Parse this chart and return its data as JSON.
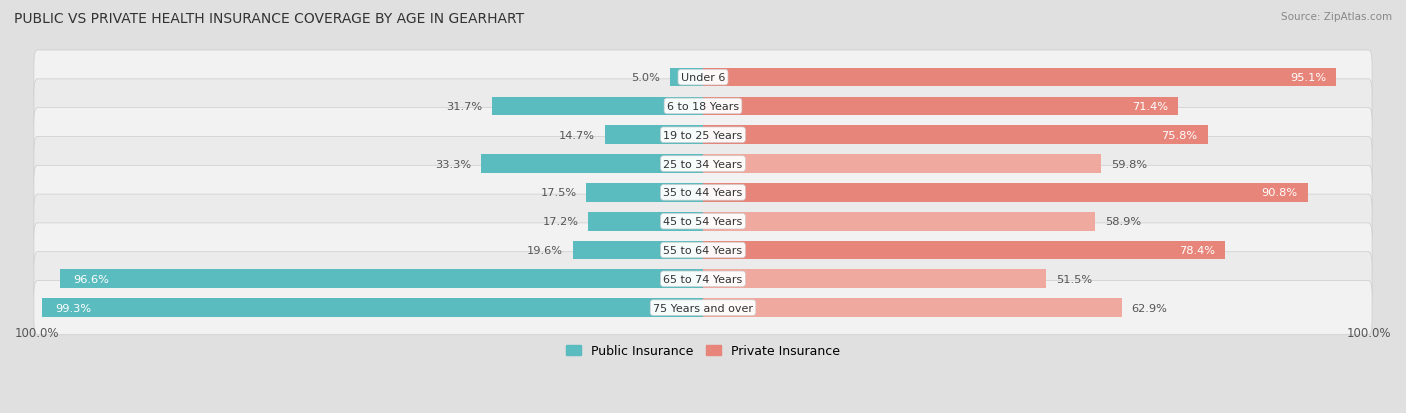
{
  "title": "PUBLIC VS PRIVATE HEALTH INSURANCE COVERAGE BY AGE IN GEARHART",
  "source": "Source: ZipAtlas.com",
  "categories": [
    "Under 6",
    "6 to 18 Years",
    "19 to 25 Years",
    "25 to 34 Years",
    "35 to 44 Years",
    "45 to 54 Years",
    "55 to 64 Years",
    "65 to 74 Years",
    "75 Years and over"
  ],
  "public_values": [
    5.0,
    31.7,
    14.7,
    33.3,
    17.5,
    17.2,
    19.6,
    96.6,
    99.3
  ],
  "private_values": [
    95.1,
    71.4,
    75.8,
    59.8,
    90.8,
    58.9,
    78.4,
    51.5,
    62.9
  ],
  "public_color": "#5bbcbf",
  "private_color": "#e8857a",
  "private_color_light": "#f0a99f",
  "row_bg_color": "#e8e8e8",
  "row_inner_color_even": "#f2f2f2",
  "row_inner_color_odd": "#ebebeb",
  "max_value": 100.0,
  "legend_public": "Public Insurance",
  "legend_private": "Private Insurance",
  "title_fontsize": 10,
  "label_fontsize": 8.0,
  "value_fontsize": 8.2,
  "bg_color": "#e0e0e0"
}
